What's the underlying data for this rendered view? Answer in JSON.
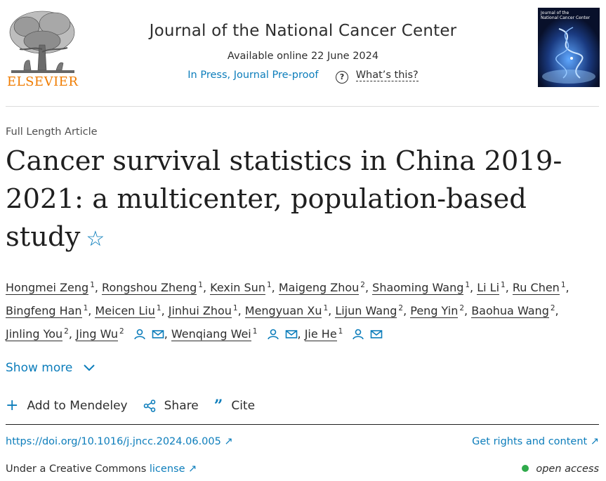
{
  "header": {
    "publisher": "ELSEVIER",
    "journal_title": "Journal of the National Cancer Center",
    "available": "Available online 22 June 2024",
    "status": "In Press, Journal Pre-proof",
    "whats_this": "What’s this?",
    "cover": {
      "line1": "Journal of the",
      "line2": "National Cancer Center"
    }
  },
  "article": {
    "type": "Full Length Article",
    "title": "Cancer survival statistics in China 2019-2021: a multicenter, population-based study",
    "authors": [
      {
        "name": "Hongmei Zeng",
        "aff": "1"
      },
      {
        "name": "Rongshou Zheng",
        "aff": "1"
      },
      {
        "name": "Kexin Sun",
        "aff": "1"
      },
      {
        "name": "Maigeng Zhou",
        "aff": "2"
      },
      {
        "name": "Shaoming Wang",
        "aff": "1"
      },
      {
        "name": "Li Li",
        "aff": "1"
      },
      {
        "name": "Ru Chen",
        "aff": "1"
      },
      {
        "name": "Bingfeng Han",
        "aff": "1"
      },
      {
        "name": "Meicen Liu",
        "aff": "1"
      },
      {
        "name": "Jinhui Zhou",
        "aff": "1"
      },
      {
        "name": "Mengyuan Xu",
        "aff": "1"
      },
      {
        "name": "Lijun Wang",
        "aff": "2"
      },
      {
        "name": "Peng Yin",
        "aff": "2"
      },
      {
        "name": "Baohua Wang",
        "aff": "2"
      },
      {
        "name": "Jinling You",
        "aff": "2"
      },
      {
        "name": "Jing Wu",
        "aff": "2"
      },
      {
        "name": "Wenqiang Wei",
        "aff": "1"
      },
      {
        "name": "Jie He",
        "aff": "1"
      }
    ],
    "show_more": "Show more"
  },
  "toolbar": {
    "add_mendeley": "Add to Mendeley",
    "share": "Share",
    "cite": "Cite"
  },
  "links": {
    "doi": "https://doi.org/10.1016/j.jncc.2024.06.005",
    "rights": "Get rights and content",
    "license_prefix": "Under a Creative Commons",
    "license": "license",
    "open_access": "open access"
  },
  "colors": {
    "link": "#0c7dbb",
    "publisher_orange": "#f07c00",
    "open_access_dot": "#2faa4b"
  }
}
